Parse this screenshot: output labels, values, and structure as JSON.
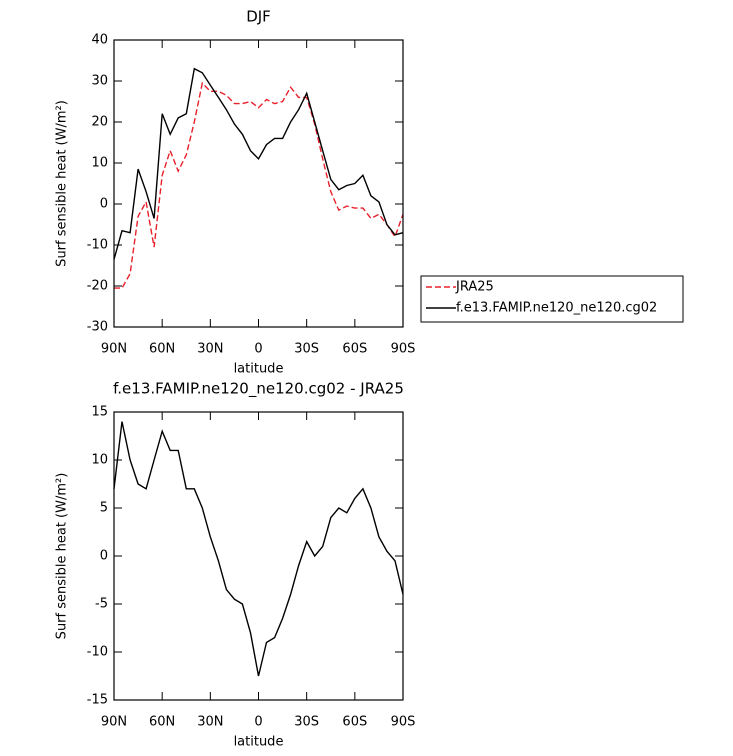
{
  "chart_data": [
    {
      "type": "line",
      "title": "DJF",
      "xlabel": "latitude",
      "ylabel": "Surf sensible heat (W/m²)",
      "x": [
        90,
        85,
        80,
        75,
        70,
        65,
        60,
        55,
        50,
        45,
        40,
        35,
        30,
        25,
        20,
        15,
        10,
        5,
        0,
        -5,
        -10,
        -15,
        -20,
        -25,
        -30,
        -35,
        -40,
        -45,
        -50,
        -55,
        -60,
        -65,
        -70,
        -75,
        -80,
        -85,
        -90
      ],
      "series": [
        {
          "name": "JRA25",
          "color": "#e8202a",
          "dashed": true,
          "values": [
            -20.5,
            -20.5,
            -17,
            -3,
            0.5,
            -10.5,
            7,
            13,
            8,
            12,
            20,
            29.5,
            27.5,
            27.5,
            26.5,
            24.5,
            24.5,
            25,
            23.5,
            25.5,
            24.5,
            25,
            28.5,
            26,
            26,
            19.5,
            11,
            3,
            -1.5,
            -0.5,
            -1,
            -1,
            -3.5,
            -2.5,
            -5,
            -8,
            -2.5
          ]
        },
        {
          "name": "f.e13.FAMIP.ne120_ne120.cg02",
          "color": "#000000",
          "dashed": false,
          "values": [
            -13.5,
            -6.5,
            -7,
            8.5,
            3,
            -3.5,
            22,
            17,
            21,
            22,
            33,
            32,
            29,
            26,
            23,
            19.5,
            17,
            13,
            11,
            14.5,
            16,
            16,
            20,
            23,
            27,
            20,
            13,
            6,
            3.5,
            4.5,
            5,
            7,
            2,
            0.5,
            -5,
            -7.5,
            -7
          ]
        }
      ],
      "xlim": [
        90,
        -90
      ],
      "xticks": [
        {
          "value": 90,
          "label": "90N"
        },
        {
          "value": 60,
          "label": "60N"
        },
        {
          "value": 30,
          "label": "30N"
        },
        0,
        {
          "value": -30,
          "label": "30S"
        },
        {
          "value": -60,
          "label": "60S"
        },
        {
          "value": -90,
          "label": "90S"
        }
      ],
      "ylim": [
        -30,
        40
      ],
      "yticks": [
        -30,
        -20,
        -10,
        0,
        10,
        20,
        30,
        40
      ],
      "legend": "right"
    },
    {
      "type": "line",
      "title": "f.e13.FAMIP.ne120_ne120.cg02 - JRA25",
      "xlabel": "latitude",
      "ylabel": "Surf sensible heat (W/m²)",
      "x": [
        90,
        85,
        80,
        75,
        70,
        65,
        60,
        55,
        50,
        45,
        40,
        35,
        30,
        25,
        20,
        15,
        10,
        5,
        0,
        -5,
        -10,
        -15,
        -20,
        -25,
        -30,
        -35,
        -40,
        -45,
        -50,
        -55,
        -60,
        -65,
        -70,
        -75,
        -80,
        -85,
        -90
      ],
      "series": [
        {
          "color": "#000000",
          "dashed": false,
          "values": [
            7,
            14,
            10,
            7.5,
            7,
            10,
            13,
            11,
            11,
            7,
            7,
            5,
            2,
            -0.5,
            -3.5,
            -4.5,
            -5,
            -8,
            -12.5,
            -9,
            -8.5,
            -6.5,
            -4,
            -1,
            1.5,
            0,
            1,
            4,
            5,
            4.5,
            6,
            7,
            5,
            2,
            0.5,
            -0.5,
            -4
          ]
        }
      ],
      "xlim": [
        90,
        -90
      ],
      "xticks": [
        {
          "value": 90,
          "label": "90N"
        },
        {
          "value": 60,
          "label": "60N"
        },
        {
          "value": 30,
          "label": "30N"
        },
        0,
        {
          "value": -30,
          "label": "30S"
        },
        {
          "value": -60,
          "label": "60S"
        },
        {
          "value": -90,
          "label": "90S"
        }
      ],
      "ylim": [
        -15,
        15
      ],
      "yticks": [
        -15,
        -10,
        -5,
        0,
        5,
        10,
        15
      ]
    }
  ]
}
